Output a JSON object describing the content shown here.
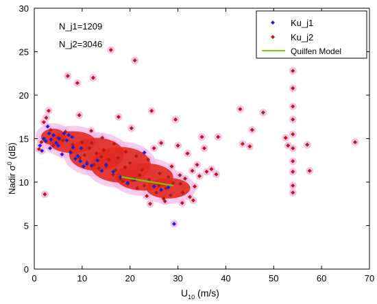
{
  "chart_data": {
    "type": "scatter",
    "xlabel_main": "U",
    "xlabel_sub": "10",
    "xlabel_rest": " (m/s)",
    "ylabel_main": "Nadir σ",
    "ylabel_sup": "0",
    "ylabel_rest": " (dB)",
    "xlim": [
      0,
      70
    ],
    "ylim": [
      0,
      30
    ],
    "xticks": [
      "0",
      "10",
      "20",
      "30",
      "40",
      "50",
      "60",
      "70"
    ],
    "yticks": [
      "0",
      "5",
      "10",
      "15",
      "20",
      "25",
      "30"
    ],
    "grid": false,
    "legend_position": "top-right",
    "annotations": [
      {
        "text": "N_j1=1209"
      },
      {
        "text": "N_j2=3046"
      }
    ],
    "series": [
      {
        "name": "Ku_j1",
        "marker": "diamond",
        "color": "#2020d0",
        "points": [
          [
            1.2,
            14.2
          ],
          [
            1.6,
            13.6
          ],
          [
            2.0,
            15.0
          ],
          [
            2.4,
            14.7
          ],
          [
            2.8,
            16.4
          ],
          [
            3.1,
            15.6
          ],
          [
            3.5,
            14.9
          ],
          [
            4.0,
            15.4
          ],
          [
            4.6,
            14.5
          ],
          [
            5.2,
            15.0
          ],
          [
            5.8,
            13.2
          ],
          [
            6.2,
            15.6
          ],
          [
            6.8,
            14.8
          ],
          [
            7.2,
            15.4
          ],
          [
            7.6,
            13.4
          ],
          [
            8.1,
            14.0
          ],
          [
            8.6,
            12.7
          ],
          [
            9.1,
            13.0
          ],
          [
            9.6,
            12.4
          ],
          [
            10.3,
            11.8
          ],
          [
            11.0,
            12.1
          ],
          [
            12.0,
            11.9
          ],
          [
            13.2,
            12.5
          ],
          [
            14.1,
            11.3
          ],
          [
            15.0,
            12.0
          ],
          [
            16.5,
            11.2
          ],
          [
            18.0,
            10.6
          ],
          [
            19.5,
            9.9
          ],
          [
            21.0,
            10.3
          ],
          [
            23.0,
            13.4
          ],
          [
            25.0,
            9.5
          ],
          [
            26.5,
            9.1
          ],
          [
            28.0,
            9.4
          ],
          [
            29.2,
            5.2
          ],
          [
            5.0,
            14.2
          ],
          [
            3.3,
            13.9
          ],
          [
            7.9,
            15.2
          ],
          [
            9.8,
            13.9
          ]
        ]
      },
      {
        "name": "Ku_j2",
        "marker": "diamond",
        "color": "#b02010",
        "points": [
          [
            1.0,
            13.8
          ],
          [
            1.5,
            14.6
          ],
          [
            2.0,
            16.9
          ],
          [
            2.5,
            17.4
          ],
          [
            3.0,
            18.2
          ],
          [
            2.2,
            8.6
          ],
          [
            4.0,
            14.2
          ],
          [
            5.0,
            15.1
          ],
          [
            6.0,
            14.8
          ],
          [
            7.0,
            22.2
          ],
          [
            7.5,
            13.5
          ],
          [
            8.0,
            14.3
          ],
          [
            9.0,
            21.4
          ],
          [
            9.5,
            12.8
          ],
          [
            10.0,
            14.6
          ],
          [
            10.5,
            13.1
          ],
          [
            11.0,
            12.3
          ],
          [
            11.5,
            13.9
          ],
          [
            12.0,
            14.5
          ],
          [
            12.5,
            12.0
          ],
          [
            13.0,
            13.3
          ],
          [
            13.5,
            11.6
          ],
          [
            14.0,
            12.9
          ],
          [
            14.5,
            13.7
          ],
          [
            15.0,
            11.8
          ],
          [
            15.5,
            12.6
          ],
          [
            16.0,
            25.2
          ],
          [
            16.5,
            10.9
          ],
          [
            17.0,
            11.4
          ],
          [
            17.5,
            12.8
          ],
          [
            18.0,
            10.4
          ],
          [
            18.5,
            10.1
          ],
          [
            19.0,
            11.7
          ],
          [
            19.5,
            9.8
          ],
          [
            20.0,
            12.2
          ],
          [
            20.5,
            10.2
          ],
          [
            21.0,
            24.0
          ],
          [
            21.5,
            9.3
          ],
          [
            22.0,
            10.8
          ],
          [
            22.5,
            11.4
          ],
          [
            23.0,
            9.6
          ],
          [
            23.5,
            8.4
          ],
          [
            24.0,
            10.3
          ],
          [
            24.5,
            18.2
          ],
          [
            25.0,
            13.9
          ],
          [
            25.5,
            8.8
          ],
          [
            26.0,
            9.6
          ],
          [
            26.5,
            14.5
          ],
          [
            27.0,
            8.1
          ],
          [
            27.5,
            9.3
          ],
          [
            28.0,
            10.6
          ],
          [
            28.5,
            8.5
          ],
          [
            29.0,
            9.9
          ],
          [
            29.5,
            17.2
          ],
          [
            30.0,
            14.2
          ],
          [
            30.5,
            9.8
          ],
          [
            31.0,
            8.8
          ],
          [
            31.5,
            10.4
          ],
          [
            32.0,
            13.3
          ],
          [
            32.5,
            8.3
          ],
          [
            33.0,
            11.3
          ],
          [
            33.5,
            9.5
          ],
          [
            34.0,
            12.0
          ],
          [
            34.5,
            10.7
          ],
          [
            35.0,
            15.2
          ],
          [
            35.5,
            13.9
          ],
          [
            36.0,
            11.2
          ],
          [
            37.0,
            11.5
          ],
          [
            38.0,
            10.9
          ],
          [
            38.4,
            15.2
          ],
          [
            43.0,
            18.4
          ],
          [
            43.5,
            14.4
          ],
          [
            45.0,
            14.1
          ],
          [
            45.5,
            16.0
          ],
          [
            52.5,
            15.1
          ],
          [
            53.0,
            14.2
          ],
          [
            54.0,
            22.8
          ],
          [
            54.0,
            20.8
          ],
          [
            54.0,
            18.7
          ],
          [
            54.0,
            17.2
          ],
          [
            54.0,
            15.5
          ],
          [
            54.0,
            13.9
          ],
          [
            54.0,
            12.4
          ],
          [
            54.0,
            11.2
          ],
          [
            54.0,
            9.6
          ],
          [
            54.0,
            8.8
          ],
          [
            57.0,
            14.3
          ],
          [
            57.5,
            11.3
          ],
          [
            67.0,
            14.6
          ],
          [
            47.8,
            18.0
          ],
          [
            12.3,
            22.0
          ],
          [
            17.6,
            17.5
          ],
          [
            9.4,
            17.7
          ],
          [
            20.3,
            16.2
          ],
          [
            3.4,
            16.0
          ],
          [
            6.5,
            15.8
          ],
          [
            11.9,
            15.9
          ],
          [
            14.2,
            15.1
          ],
          [
            16.7,
            14.4
          ],
          [
            19.1,
            13.5
          ],
          [
            21.3,
            13.0
          ],
          [
            23.8,
            12.6
          ],
          [
            26.2,
            11.0
          ],
          [
            28.7,
            11.8
          ],
          [
            30.4,
            10.8
          ],
          [
            24.2,
            7.5
          ],
          [
            27.3,
            7.8
          ],
          [
            30.9,
            7.6
          ],
          [
            33.2,
            7.9
          ]
        ]
      },
      {
        "name": "Quilfen Model",
        "type": "line",
        "color": "#6fd400",
        "x": [
          18.2,
          29.0
        ],
        "y": [
          10.6,
          9.6
        ]
      }
    ]
  }
}
